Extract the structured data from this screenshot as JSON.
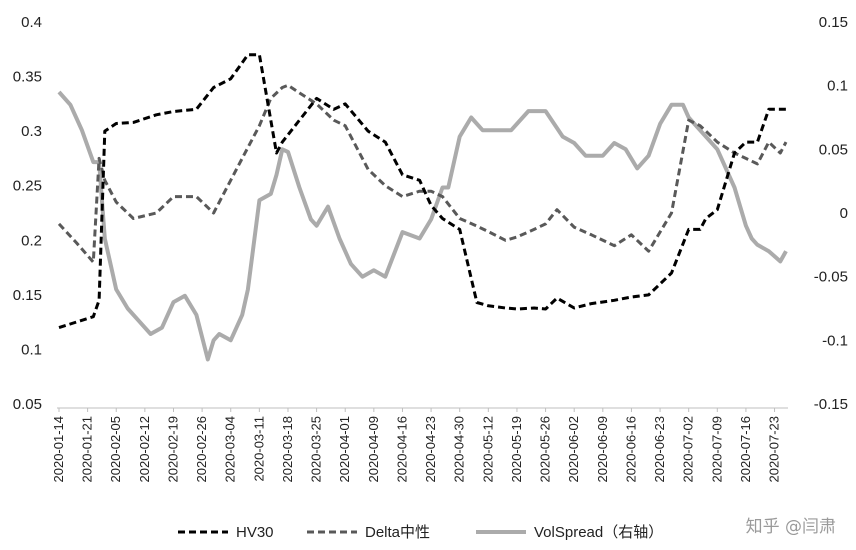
{
  "chart_data": {
    "type": "line",
    "title": "",
    "xlabel": "",
    "ylabel": "",
    "y2label": "",
    "ylim": [
      0.05,
      0.4
    ],
    "y2lim": [
      -0.15,
      0.15
    ],
    "y_ticks": [
      "0.4",
      "0.35",
      "0.3",
      "0.25",
      "0.2",
      "0.15",
      "0.1",
      "0.05"
    ],
    "y2_ticks": [
      "0.15",
      "0.1",
      "0.05",
      "0",
      "-0.05",
      "-0.1",
      "-0.15"
    ],
    "x_tick_labels": [
      "2020-01-14",
      "2020-01-21",
      "2020-02-05",
      "2020-02-12",
      "2020-02-19",
      "2020-02-26",
      "2020-03-04",
      "2020-03-11",
      "2020-03-18",
      "2020-03-25",
      "2020-04-01",
      "2020-04-09",
      "2020-04-16",
      "2020-04-23",
      "2020-04-30",
      "2020-05-12",
      "2020-05-19",
      "2020-05-26",
      "2020-06-02",
      "2020-06-09",
      "2020-06-16",
      "2020-06-23",
      "2020-07-02",
      "2020-07-09",
      "2020-07-16",
      "2020-07-23"
    ],
    "x_tick_index": [
      0,
      5,
      10,
      15,
      20,
      25,
      30,
      35,
      40,
      45,
      50,
      55,
      60,
      65,
      70,
      75,
      80,
      85,
      90,
      95,
      100,
      105,
      110,
      115,
      120,
      125
    ],
    "legend_position": "bottom",
    "grid": false,
    "series": [
      {
        "name": "HV30",
        "axis": "left",
        "style": "dashed",
        "color": "#000000",
        "x": [
          0,
          3,
          6,
          7,
          8,
          10,
          13,
          17,
          20,
          24,
          27,
          30,
          33,
          35,
          36,
          38,
          39,
          42,
          45,
          48,
          50,
          54,
          57,
          60,
          63,
          65,
          67,
          70,
          73,
          75,
          78,
          80,
          83,
          85,
          87,
          90,
          93,
          97,
          100,
          103,
          107,
          110,
          112,
          113,
          115,
          118,
          120,
          122,
          124,
          126,
          127
        ],
        "values": [
          0.12,
          0.125,
          0.13,
          0.145,
          0.3,
          0.307,
          0.308,
          0.315,
          0.318,
          0.32,
          0.34,
          0.348,
          0.37,
          0.37,
          0.34,
          0.28,
          0.29,
          0.31,
          0.33,
          0.32,
          0.325,
          0.3,
          0.29,
          0.26,
          0.255,
          0.232,
          0.22,
          0.21,
          0.143,
          0.14,
          0.138,
          0.137,
          0.138,
          0.137,
          0.147,
          0.138,
          0.142,
          0.145,
          0.148,
          0.15,
          0.17,
          0.21,
          0.21,
          0.22,
          0.228,
          0.28,
          0.29,
          0.29,
          0.32,
          0.32,
          0.32
        ]
      },
      {
        "name": "Delta中性",
        "axis": "left",
        "style": "dashed",
        "color": "#595959",
        "x": [
          0,
          3,
          6,
          7,
          8,
          10,
          13,
          17,
          20,
          24,
          27,
          30,
          33,
          35,
          37,
          39,
          40,
          42,
          45,
          48,
          50,
          54,
          57,
          60,
          63,
          65,
          67,
          70,
          73,
          75,
          78,
          80,
          83,
          85,
          87,
          90,
          93,
          97,
          100,
          103,
          107,
          110,
          112,
          113,
          115,
          118,
          120,
          122,
          124,
          126,
          127
        ],
        "values": [
          0.215,
          0.198,
          0.18,
          0.275,
          0.255,
          0.235,
          0.22,
          0.225,
          0.24,
          0.24,
          0.225,
          0.255,
          0.285,
          0.305,
          0.33,
          0.34,
          0.342,
          0.335,
          0.325,
          0.31,
          0.305,
          0.265,
          0.25,
          0.24,
          0.245,
          0.245,
          0.24,
          0.22,
          0.213,
          0.208,
          0.2,
          0.203,
          0.21,
          0.215,
          0.228,
          0.212,
          0.205,
          0.195,
          0.205,
          0.19,
          0.225,
          0.31,
          0.305,
          0.3,
          0.29,
          0.28,
          0.275,
          0.27,
          0.29,
          0.28,
          0.29
        ]
      },
      {
        "name": "VolSpread（右轴）",
        "axis": "right",
        "style": "solid",
        "color": "#ababab",
        "x": [
          0,
          2,
          4,
          6,
          7,
          8,
          10,
          12,
          14,
          16,
          18,
          20,
          22,
          24,
          26,
          27,
          28,
          30,
          32,
          33,
          35,
          37,
          38,
          39,
          40,
          42,
          44,
          45,
          47,
          49,
          51,
          53,
          55,
          57,
          60,
          63,
          65,
          67,
          68,
          70,
          72,
          74,
          76,
          79,
          82,
          85,
          88,
          90,
          92,
          95,
          97,
          99,
          101,
          103,
          105,
          107,
          109,
          110,
          111,
          113,
          115,
          118,
          120,
          121,
          122,
          124,
          126,
          127
        ],
        "values": [
          0.095,
          0.085,
          0.065,
          0.04,
          0.04,
          -0.02,
          -0.06,
          -0.075,
          -0.085,
          -0.095,
          -0.09,
          -0.07,
          -0.065,
          -0.08,
          -0.115,
          -0.1,
          -0.095,
          -0.1,
          -0.08,
          -0.06,
          0.01,
          0.015,
          0.03,
          0.05,
          0.048,
          0.02,
          -0.005,
          -0.01,
          0.005,
          -0.02,
          -0.04,
          -0.05,
          -0.045,
          -0.05,
          -0.015,
          -0.02,
          -0.005,
          0.02,
          0.02,
          0.06,
          0.075,
          0.065,
          0.065,
          0.065,
          0.08,
          0.08,
          0.06,
          0.055,
          0.045,
          0.045,
          0.055,
          0.05,
          0.035,
          0.045,
          0.07,
          0.085,
          0.085,
          0.075,
          0.07,
          0.06,
          0.05,
          0.02,
          -0.01,
          -0.02,
          -0.025,
          -0.03,
          -0.038,
          -0.03
        ]
      }
    ]
  },
  "watermark": "知乎 @闫肃"
}
